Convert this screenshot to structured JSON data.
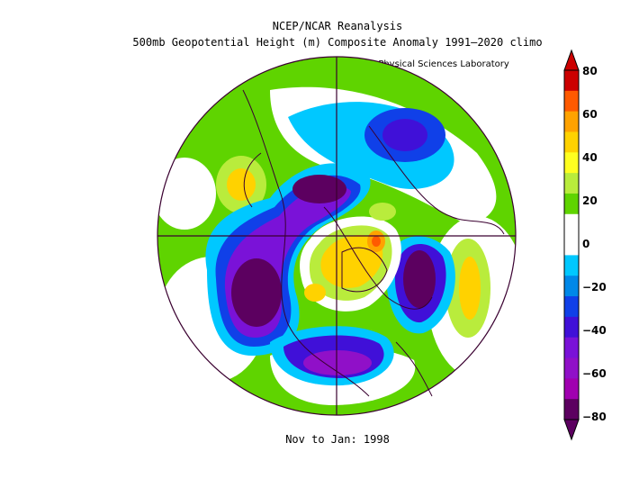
{
  "title": {
    "line1": "NCEP/NCAR Reanalysis",
    "line2": "500mb Geopotential Height (m) Composite Anomaly 1991–2020 climo",
    "credit": "NOAA Physical Sciences Laboratory"
  },
  "subtitle": "Nov to Jan: 1998",
  "colorbar": {
    "labels": [
      "80",
      "60",
      "40",
      "20",
      "0",
      "−20",
      "−40",
      "−60",
      "−80"
    ],
    "colors": [
      "#cc0000",
      "#ff5a00",
      "#ffa200",
      "#ffd200",
      "#ffff20",
      "#b9ec3c",
      "#5fd400",
      "#ffffff",
      "#ffffff",
      "#00c8ff",
      "#0088e8",
      "#1040e8",
      "#4010d8",
      "#7a12d8",
      "#9010c8",
      "#a000b0",
      "#5c0060"
    ]
  }
}
